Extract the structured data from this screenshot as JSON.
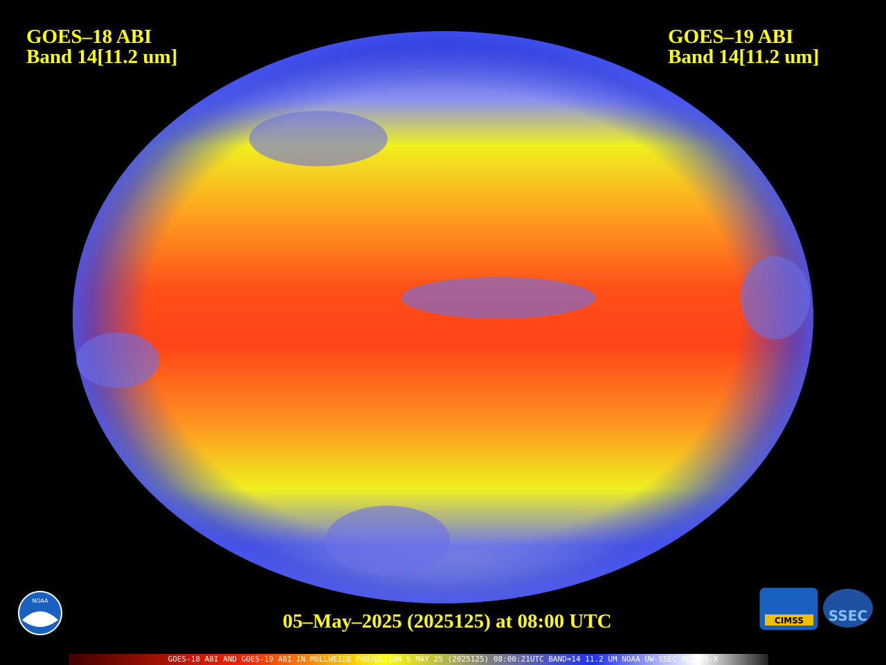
{
  "left_label": {
    "satellite": "GOES–18 ABI",
    "band": "Band 14[11.2 um]"
  },
  "right_label": {
    "satellite": "GOES–19 ABI",
    "band": "Band 14[11.2 um]"
  },
  "timestamp": "05–May–2025 (2025125) at 08:00 UTC",
  "footer": "GOES-18 ABI AND GOES-19 ABI IN MOLLWEIDE PROJECTION 5 MAY 25 (2025125) 08:00:21UTC BAND=14 11.2 UM NOAA UW-SSEC MCIDAS-X",
  "logos": {
    "noaa": "NOAA",
    "cimss": "CIMSS",
    "ssec": "SSEC"
  }
}
